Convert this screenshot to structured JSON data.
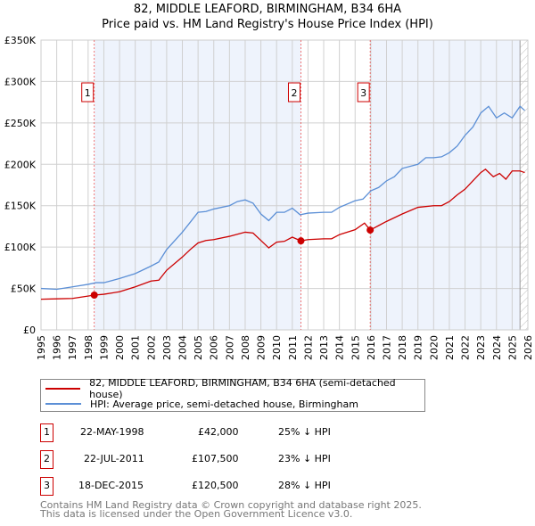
{
  "header": {
    "title": "82, MIDDLE LEAFORD, BIRMINGHAM, B34 6HA",
    "subtitle": "Price paid vs. HM Land Registry's House Price Index (HPI)"
  },
  "colors": {
    "property": "#cc0000",
    "hpi": "#5b8fd6",
    "shade": "#eef3fc"
  },
  "chart_data": {
    "type": "line",
    "title": "Price paid vs. HM Land Registry's House Price Index (HPI)",
    "xlim": [
      1995,
      2026
    ],
    "ylim": [
      0,
      350000
    ],
    "x_ticks": [
      "1995",
      "1996",
      "1997",
      "1998",
      "1999",
      "2000",
      "2001",
      "2002",
      "2003",
      "2004",
      "2005",
      "2006",
      "2007",
      "2008",
      "2009",
      "2010",
      "2011",
      "2012",
      "2013",
      "2014",
      "2015",
      "2016",
      "2017",
      "2018",
      "2019",
      "2020",
      "2021",
      "2022",
      "2023",
      "2024",
      "2025",
      "2026"
    ],
    "y_ticks": [
      {
        "v": 0,
        "label": "£0"
      },
      {
        "v": 50000,
        "label": "£50K"
      },
      {
        "v": 100000,
        "label": "£100K"
      },
      {
        "v": 150000,
        "label": "£150K"
      },
      {
        "v": 200000,
        "label": "£200K"
      },
      {
        "v": 250000,
        "label": "£250K"
      },
      {
        "v": 300000,
        "label": "£300K"
      },
      {
        "v": 350000,
        "label": "£350K"
      }
    ],
    "grid": true,
    "series": [
      {
        "name": "82, MIDDLE LEAFORD, BIRMINGHAM, B34 6HA (semi-detached house)",
        "color": "#cc0000",
        "x": [
          1995,
          1996,
          1997,
          1998.4,
          1999,
          2000,
          2001,
          2002,
          2002.5,
          2003,
          2004,
          2004.5,
          2005,
          2005.5,
          2006,
          2007,
          2008,
          2008.5,
          2009,
          2009.5,
          2010,
          2010.5,
          2011,
          2011.55,
          2012,
          2013,
          2013.5,
          2014,
          2015,
          2015.6,
          2015.96,
          2016.5,
          2017,
          2018,
          2019,
          2020,
          2020.5,
          2021,
          2021.5,
          2022,
          2022.5,
          2023,
          2023.3,
          2023.8,
          2024.2,
          2024.6,
          2025,
          2025.5,
          2025.8
        ],
        "y": [
          37000,
          37500,
          38000,
          42000,
          43000,
          46000,
          52000,
          59000,
          60000,
          72000,
          88000,
          97000,
          105000,
          108000,
          109000,
          113000,
          118000,
          117000,
          108000,
          99000,
          106000,
          107000,
          112000,
          107500,
          109000,
          110000,
          110000,
          115000,
          121000,
          129000,
          120500,
          126000,
          131000,
          140000,
          148000,
          150000,
          150000,
          155000,
          163000,
          170000,
          180000,
          190000,
          194000,
          185000,
          189000,
          182000,
          192000,
          192000,
          190000
        ]
      },
      {
        "name": "HPI: Average price, semi-detached house, Birmingham",
        "color": "#5b8fd6",
        "x": [
          1995,
          1996,
          1997,
          1998,
          1998.5,
          1999,
          2000,
          2001,
          2002,
          2002.5,
          2003,
          2004,
          2004.5,
          2005,
          2005.5,
          2006,
          2007,
          2007.5,
          2008,
          2008.5,
          2009,
          2009.5,
          2010,
          2010.5,
          2011,
          2011.5,
          2012,
          2013,
          2013.5,
          2014,
          2015,
          2015.5,
          2016,
          2016.5,
          2017,
          2017.5,
          2018,
          2019,
          2019.5,
          2020,
          2020.5,
          2021,
          2021.5,
          2022,
          2022.5,
          2023,
          2023.5,
          2024,
          2024.5,
          2025,
          2025.5,
          2025.8
        ],
        "y": [
          50000,
          49000,
          52000,
          55000,
          57000,
          57000,
          62000,
          68000,
          77000,
          82000,
          97000,
          118000,
          130000,
          142000,
          143000,
          146000,
          150000,
          155000,
          157000,
          153000,
          140000,
          132000,
          142000,
          142000,
          147000,
          139000,
          141000,
          142000,
          142000,
          148000,
          156000,
          158000,
          168000,
          172000,
          180000,
          185000,
          195000,
          200000,
          208000,
          208000,
          209000,
          214000,
          222000,
          235000,
          245000,
          262000,
          270000,
          256000,
          262000,
          256000,
          270000,
          265000
        ]
      }
    ],
    "sales": [
      {
        "n": "1",
        "x": 1998.39,
        "y": 42000
      },
      {
        "n": "2",
        "x": 2011.55,
        "y": 107500
      },
      {
        "n": "3",
        "x": 2015.96,
        "y": 120500
      }
    ],
    "hatch_from": 2025.5
  },
  "legend": {
    "property": "82, MIDDLE LEAFORD, BIRMINGHAM, B34 6HA (semi-detached house)",
    "hpi": "HPI: Average price, semi-detached house, Birmingham"
  },
  "transactions": [
    {
      "n": "1",
      "date": "22-MAY-1998",
      "price": "£42,000",
      "diff": "25% ↓ HPI"
    },
    {
      "n": "2",
      "date": "22-JUL-2011",
      "price": "£107,500",
      "diff": "23% ↓ HPI"
    },
    {
      "n": "3",
      "date": "18-DEC-2015",
      "price": "£120,500",
      "diff": "28% ↓ HPI"
    }
  ],
  "footer": {
    "line1": "Contains HM Land Registry data © Crown copyright and database right 2025.",
    "line2": "This data is licensed under the Open Government Licence v3.0."
  }
}
